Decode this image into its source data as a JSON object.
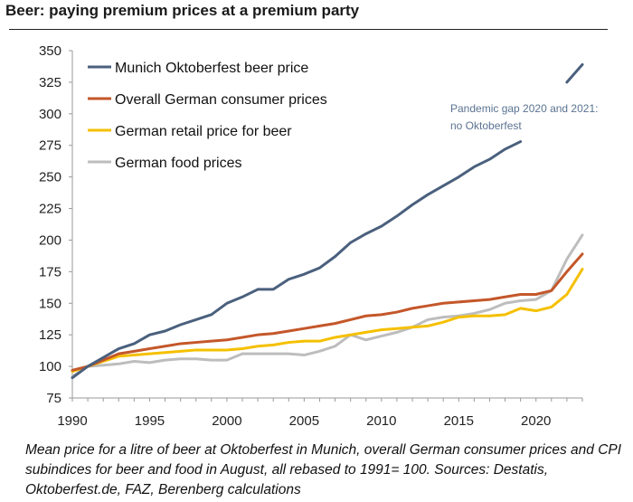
{
  "title": "Beer: paying premium prices at a premium party",
  "caption": "Mean price for a litre of beer at Oktoberfest in Munich, overall German consumer prices and CPI subindices for beer and food in August, all rebased to 1991= 100. Sources: Destatis, Oktoberfest.de, FAZ, Berenberg calculations",
  "annotation": "Pandemic gap 2020 and 2021: no Oktoberfest",
  "chart_data": {
    "type": "line",
    "xlim": [
      1990,
      2023
    ],
    "ylim": [
      75,
      350
    ],
    "xticks": [
      1990,
      1995,
      2000,
      2005,
      2010,
      2015,
      2020
    ],
    "yticks": [
      75,
      100,
      125,
      150,
      175,
      200,
      225,
      250,
      275,
      300,
      325,
      350
    ],
    "grid": false,
    "legend": "top-left",
    "series": [
      {
        "name": "Munich Oktoberfest beer price",
        "color": "#4a607d",
        "x": [
          1990,
          1991,
          1992,
          1993,
          1994,
          1995,
          1996,
          1997,
          1998,
          1999,
          2000,
          2001,
          2002,
          2003,
          2004,
          2005,
          2006,
          2007,
          2008,
          2009,
          2010,
          2011,
          2012,
          2013,
          2014,
          2015,
          2016,
          2017,
          2018,
          2019,
          null,
          2022,
          2023
        ],
        "y": [
          91,
          100,
          107,
          114,
          118,
          125,
          128,
          133,
          137,
          141,
          150,
          155,
          161,
          161,
          169,
          173,
          178,
          187,
          198,
          205,
          211,
          219,
          228,
          236,
          243,
          250,
          258,
          264,
          272,
          278,
          null,
          325,
          339
        ]
      },
      {
        "name": "Overall German consumer prices",
        "color": "#c4572a",
        "x": [
          1990,
          1991,
          1992,
          1993,
          1994,
          1995,
          1996,
          1997,
          1998,
          1999,
          2000,
          2001,
          2002,
          2003,
          2004,
          2005,
          2006,
          2007,
          2008,
          2009,
          2010,
          2011,
          2012,
          2013,
          2014,
          2015,
          2016,
          2017,
          2018,
          2019,
          2020,
          2021,
          2022,
          2023
        ],
        "y": [
          97,
          100,
          105,
          110,
          112,
          114,
          116,
          118,
          119,
          120,
          121,
          123,
          125,
          126,
          128,
          130,
          132,
          134,
          137,
          140,
          141,
          143,
          146,
          148,
          150,
          151,
          152,
          153,
          155,
          157,
          157,
          160,
          175,
          189
        ]
      },
      {
        "name": "German retail price for beer",
        "color": "#f5c000",
        "x": [
          1990,
          1991,
          1992,
          1993,
          1994,
          1995,
          1996,
          1997,
          1998,
          1999,
          2000,
          2001,
          2002,
          2003,
          2004,
          2005,
          2006,
          2007,
          2008,
          2009,
          2010,
          2011,
          2012,
          2013,
          2014,
          2015,
          2016,
          2017,
          2018,
          2019,
          2020,
          2021,
          2022,
          2023
        ],
        "y": [
          96,
          100,
          104,
          108,
          109,
          110,
          111,
          112,
          113,
          113,
          113,
          114,
          116,
          117,
          119,
          120,
          120,
          123,
          125,
          127,
          129,
          130,
          131,
          132,
          135,
          139,
          140,
          140,
          141,
          146,
          144,
          147,
          157,
          177
        ]
      },
      {
        "name": "German food prices",
        "color": "#bdbdbd",
        "x": [
          1990,
          1991,
          1992,
          1993,
          1994,
          1995,
          1996,
          1997,
          1998,
          1999,
          2000,
          2001,
          2002,
          2003,
          2004,
          2005,
          2006,
          2007,
          2008,
          2009,
          2010,
          2011,
          2012,
          2013,
          2014,
          2015,
          2016,
          2017,
          2018,
          2019,
          2020,
          2021,
          2022,
          2023
        ],
        "y": [
          92,
          100,
          101,
          102,
          104,
          103,
          105,
          106,
          106,
          105,
          105,
          110,
          110,
          110,
          110,
          109,
          112,
          116,
          125,
          121,
          124,
          127,
          131,
          137,
          139,
          140,
          142,
          145,
          150,
          152,
          153,
          160,
          185,
          204
        ]
      }
    ]
  }
}
